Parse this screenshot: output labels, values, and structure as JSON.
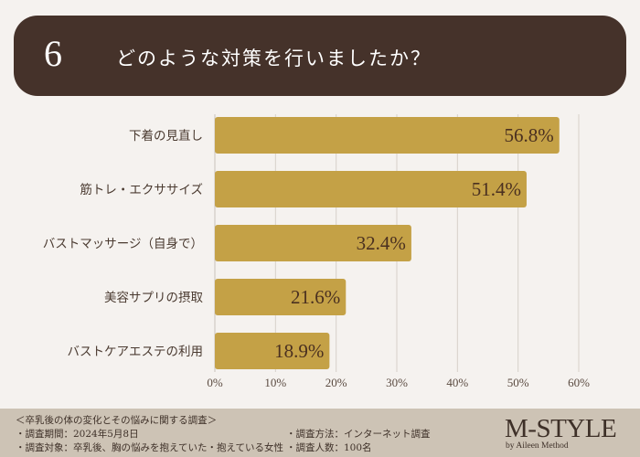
{
  "header": {
    "number": "6",
    "title": "どのような対策を行いましたか？"
  },
  "chart_data": {
    "type": "bar",
    "orientation": "horizontal",
    "title": "どのような対策を行いましたか？",
    "categories": [
      "下着の見直し",
      "筋トレ・エクササイズ",
      "バストマッサージ（自身で）",
      "美容サプリの摂取",
      "バストケアエステの利用"
    ],
    "values": [
      56.8,
      51.4,
      32.4,
      21.6,
      18.9
    ],
    "value_labels": [
      "56.8%",
      "51.4%",
      "32.4%",
      "21.6%",
      "18.9%"
    ],
    "xlim": [
      0,
      60
    ],
    "xticks": [
      "0%",
      "10%",
      "20%",
      "30%",
      "40%",
      "50%",
      "60%"
    ],
    "xlabel": "",
    "ylabel": "",
    "grid": true,
    "bar_color": "#c4a146"
  },
  "footer": {
    "survey_title": "＜卒乳後の体の変化とその悩みに関する調査＞",
    "period": "・調査期間：2024年5月8日",
    "target": "・調査対象：卒乳後、胸の悩みを抱えていた・抱えている女性",
    "method": "・調査方法：インターネット調査",
    "count": "・調査人数：100名",
    "logo": "M-STYLE",
    "logo_sub": "by Aileen Method"
  }
}
